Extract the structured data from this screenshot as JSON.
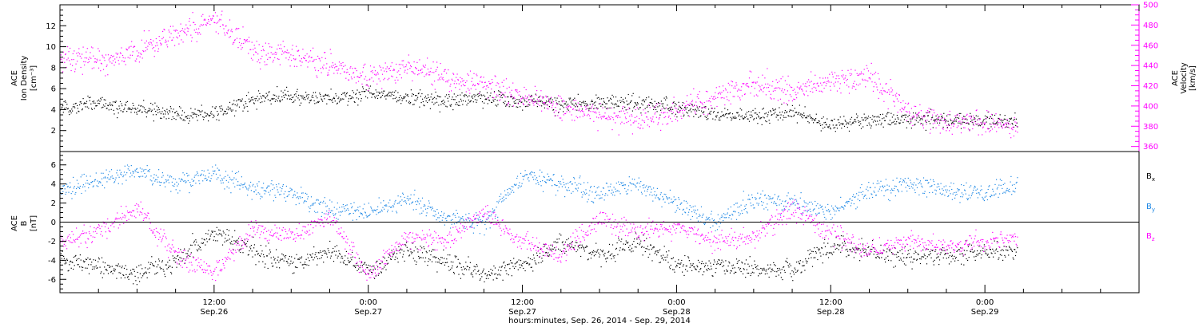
{
  "chart_data": [
    {
      "type": "scatter",
      "title": "",
      "xlabel": "hours:minutes, Sep. 26, 2014 - Sep. 29, 2014",
      "x_ticks": [
        {
          "hours": 12,
          "time": "12:00",
          "date": "Sep.26"
        },
        {
          "hours": 24,
          "time": "0:00",
          "date": "Sep.27"
        },
        {
          "hours": 36,
          "time": "12:00",
          "date": "Sep.27"
        },
        {
          "hours": 48,
          "time": "0:00",
          "date": "Sep.28"
        },
        {
          "hours": 60,
          "time": "12:00",
          "date": "Sep.28"
        },
        {
          "hours": 72,
          "time": "0:00",
          "date": "Sep.29"
        }
      ],
      "xlim_hours": [
        0,
        84
      ],
      "left_axis": {
        "label": [
          "ACE",
          "Ion Density",
          "[cm⁻³]"
        ],
        "ylim": [
          0,
          14
        ],
        "ticks": [
          "2",
          "4",
          "6",
          "8",
          "10",
          "12"
        ],
        "tick_values": [
          2,
          4,
          6,
          8,
          10,
          12
        ]
      },
      "right_axis": {
        "label": [
          "ACE",
          "Velocity",
          "[km/s]"
        ],
        "ylim": [
          355,
          500
        ],
        "ticks": [
          "360",
          "380",
          "400",
          "420",
          "440",
          "460",
          "480",
          "500"
        ],
        "tick_values": [
          360,
          380,
          400,
          420,
          440,
          460,
          480,
          500
        ],
        "color": "#ff00ff"
      },
      "series": [
        {
          "color": "#000000",
          "x_hours": [
            0,
            3,
            6,
            9,
            12,
            15,
            18,
            21,
            24,
            27,
            30,
            33,
            36,
            39,
            42,
            45,
            48,
            51,
            54,
            57,
            60,
            63,
            66,
            69,
            72,
            74.5
          ],
          "values": [
            4.0,
            4.6,
            4.0,
            3.6,
            3.6,
            5.0,
            5.4,
            5.0,
            5.6,
            5.2,
            4.8,
            5.2,
            4.8,
            4.6,
            4.6,
            4.6,
            4.2,
            3.6,
            3.4,
            3.8,
            2.6,
            3.0,
            3.2,
            3.0,
            3.0,
            3.0
          ]
        },
        {
          "color": "#ff00ff",
          "x_hours": [
            0,
            3,
            6,
            9,
            12,
            15,
            18,
            21,
            24,
            27,
            30,
            33,
            36,
            39,
            42,
            45,
            48,
            51,
            54,
            57,
            60,
            63,
            66,
            69,
            72,
            74.5
          ],
          "values": [
            450,
            445,
            455,
            470,
            485,
            455,
            450,
            440,
            428,
            440,
            430,
            420,
            410,
            398,
            392,
            388,
            395,
            410,
            422,
            415,
            425,
            430,
            395,
            385,
            383,
            380
          ]
        }
      ]
    },
    {
      "type": "scatter",
      "title": "",
      "left_axis": {
        "label": [
          "ACE",
          "B",
          "[nT]"
        ],
        "ylim": [
          -7.4,
          7.4
        ],
        "ticks": [
          "-6",
          "-4",
          "-2",
          "0",
          "2",
          "4",
          "6"
        ],
        "tick_values": [
          -6,
          -4,
          -2,
          0,
          2,
          4,
          6
        ]
      },
      "zero_line": true,
      "series": [
        {
          "name": "B",
          "subscript": "x",
          "color": "#000000",
          "x_hours": [
            0,
            3,
            6,
            9,
            12,
            15,
            18,
            21,
            24,
            27,
            30,
            33,
            36,
            39,
            42,
            45,
            48,
            51,
            54,
            57,
            60,
            63,
            66,
            69,
            72,
            74.5
          ],
          "values": [
            -4.0,
            -4.5,
            -5.5,
            -4.0,
            -1.0,
            -3.0,
            -4.5,
            -3.0,
            -5.0,
            -3.0,
            -4.0,
            -5.5,
            -4.5,
            -2.0,
            -3.5,
            -2.0,
            -4.5,
            -4.5,
            -5.0,
            -5.0,
            -2.5,
            -3.0,
            -3.5,
            -3.5,
            -3.0,
            -3.0
          ]
        },
        {
          "name": "B",
          "subscript": "y",
          "color": "#1e88e5",
          "x_hours": [
            0,
            3,
            6,
            9,
            12,
            15,
            18,
            21,
            24,
            27,
            30,
            33,
            36,
            39,
            42,
            45,
            48,
            51,
            54,
            57,
            60,
            63,
            66,
            69,
            72,
            74.5
          ],
          "values": [
            3.5,
            4.5,
            5.5,
            4.0,
            5.0,
            3.5,
            3.0,
            1.5,
            1.0,
            2.5,
            0.5,
            0.0,
            5.0,
            4.0,
            3.0,
            4.0,
            2.0,
            0.0,
            2.5,
            2.0,
            1.0,
            3.5,
            4.0,
            3.5,
            3.0,
            4.0
          ]
        },
        {
          "name": "B",
          "subscript": "z",
          "color": "#ff00ff",
          "x_hours": [
            0,
            3,
            6,
            9,
            12,
            15,
            18,
            21,
            24,
            27,
            30,
            33,
            36,
            39,
            42,
            45,
            48,
            51,
            54,
            57,
            60,
            63,
            66,
            69,
            72,
            74.5
          ],
          "values": [
            -2.0,
            -1.0,
            1.5,
            -3.5,
            -5.5,
            -0.5,
            -1.5,
            0.5,
            -5.5,
            -1.5,
            -2.0,
            1.0,
            -2.0,
            -3.5,
            0.5,
            -1.0,
            -0.5,
            -2.0,
            -1.5,
            1.5,
            -1.0,
            -3.0,
            -2.0,
            -2.5,
            -2.0,
            -1.5
          ]
        }
      ]
    }
  ]
}
